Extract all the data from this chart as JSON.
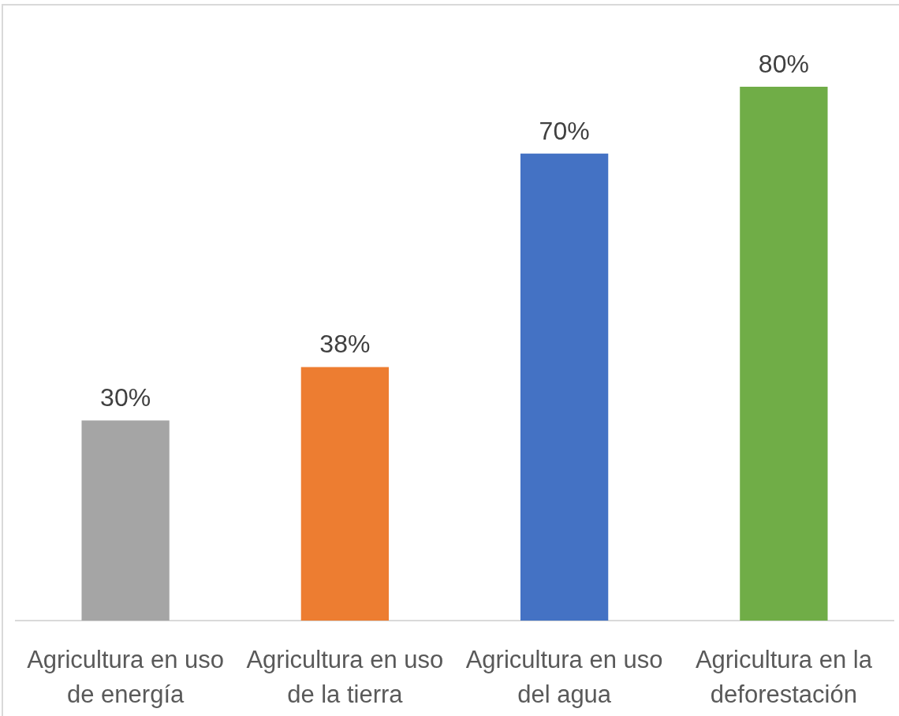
{
  "chart_data": {
    "type": "bar",
    "categories": [
      "Agricultura en uso de energía",
      "Agricultura en uso de la tierra",
      "Agricultura en uso del agua",
      "Agricultura en la deforestación"
    ],
    "values": [
      30,
      38,
      70,
      80
    ],
    "colors": [
      "#a5a5a5",
      "#ed7d31",
      "#4472c4",
      "#70ad47"
    ],
    "value_labels": [
      "30%",
      "38%",
      "70%",
      "80%"
    ],
    "tick_labels": "x"
  }
}
